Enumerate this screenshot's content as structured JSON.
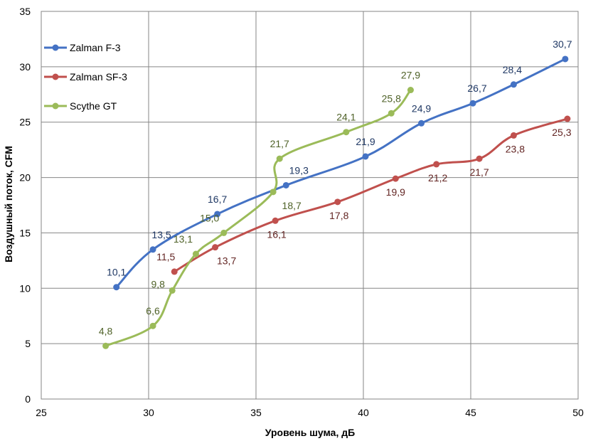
{
  "chart_data": {
    "type": "line",
    "xlabel": "Уровень шума, дБ",
    "ylabel": "Воздушный поток, CFM",
    "xlim": [
      25,
      50
    ],
    "ylim": [
      0,
      35
    ],
    "x_ticks": [
      "25",
      "30",
      "35",
      "40",
      "45",
      "50"
    ],
    "y_ticks": [
      "0",
      "5",
      "10",
      "15",
      "20",
      "25",
      "30",
      "35"
    ],
    "grid": true,
    "legend_position": "top-left",
    "series": [
      {
        "name": "Zalman F-3",
        "color": "#4472C4",
        "label_color": "#1F3864",
        "points": [
          {
            "x": 28.5,
            "y": 10.1,
            "label": "10,1"
          },
          {
            "x": 30.2,
            "y": 13.5,
            "label": "13,5"
          },
          {
            "x": 33.2,
            "y": 16.7,
            "label": "16,7"
          },
          {
            "x": 36.4,
            "y": 19.3,
            "label": "19,3"
          },
          {
            "x": 40.1,
            "y": 21.9,
            "label": "21,9"
          },
          {
            "x": 42.7,
            "y": 24.9,
            "label": "24,9"
          },
          {
            "x": 45.1,
            "y": 26.7,
            "label": "26,7"
          },
          {
            "x": 47.0,
            "y": 28.4,
            "label": "28,4"
          },
          {
            "x": 49.4,
            "y": 30.7,
            "label": "30,7"
          }
        ]
      },
      {
        "name": "Zalman SF-3",
        "color": "#C0504D",
        "label_color": "#632523",
        "points": [
          {
            "x": 31.2,
            "y": 11.5,
            "label": "11,5"
          },
          {
            "x": 33.1,
            "y": 13.7,
            "label": "13,7"
          },
          {
            "x": 35.9,
            "y": 16.1,
            "label": "16,1"
          },
          {
            "x": 38.8,
            "y": 17.8,
            "label": "17,8"
          },
          {
            "x": 41.5,
            "y": 19.9,
            "label": "19,9"
          },
          {
            "x": 43.4,
            "y": 21.2,
            "label": "21,2"
          },
          {
            "x": 45.4,
            "y": 21.7,
            "label": "21,7"
          },
          {
            "x": 47.0,
            "y": 23.8,
            "label": "23,8"
          },
          {
            "x": 49.5,
            "y": 25.3,
            "label": "25,3"
          }
        ]
      },
      {
        "name": "Scythe GT",
        "color": "#9BBB59",
        "label_color": "#4F6228",
        "points": [
          {
            "x": 28.0,
            "y": 4.8,
            "label": "4,8"
          },
          {
            "x": 30.2,
            "y": 6.6,
            "label": "6,6"
          },
          {
            "x": 31.1,
            "y": 9.8,
            "label": "9,8"
          },
          {
            "x": 32.2,
            "y": 13.1,
            "label": "13,1"
          },
          {
            "x": 33.5,
            "y": 15.0,
            "label": "15,0"
          },
          {
            "x": 35.8,
            "y": 18.7,
            "label": "18,7"
          },
          {
            "x": 36.1,
            "y": 21.7,
            "label": "21,7"
          },
          {
            "x": 39.2,
            "y": 24.1,
            "label": "24,1"
          },
          {
            "x": 41.3,
            "y": 25.8,
            "label": "25,8"
          },
          {
            "x": 42.2,
            "y": 27.9,
            "label": "27,9"
          }
        ]
      }
    ]
  }
}
